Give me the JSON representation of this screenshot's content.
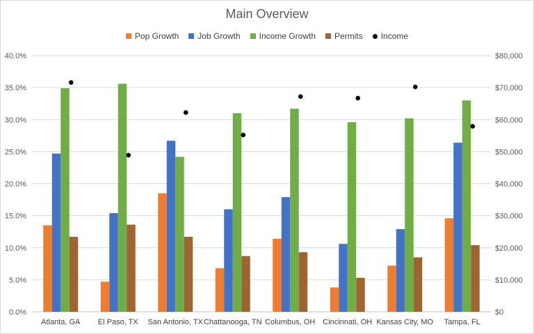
{
  "chart_data": {
    "type": "bar",
    "title": "Main Overview",
    "categories": [
      "Atlanta, GA",
      "El Paso, TX",
      "San Antonio, TX",
      "Chattanooga, TN",
      "Columbus, OH",
      "Cincinnati, OH",
      "Kansas City, MO",
      "Tampa, FL"
    ],
    "series": [
      {
        "name": "Pop Growth",
        "type": "bar",
        "axis": "left",
        "color": "#ED7D31",
        "values": [
          13.5,
          4.7,
          18.5,
          6.8,
          11.4,
          3.8,
          7.2,
          14.6
        ]
      },
      {
        "name": "Job Growth",
        "type": "bar",
        "axis": "left",
        "color": "#4472C4",
        "values": [
          24.7,
          15.4,
          26.7,
          16.0,
          17.9,
          10.6,
          12.9,
          26.4
        ]
      },
      {
        "name": "Income Growth",
        "type": "bar",
        "axis": "left",
        "color": "#70AD47",
        "values": [
          34.9,
          35.6,
          24.2,
          31.0,
          31.7,
          29.6,
          30.2,
          33.0
        ]
      },
      {
        "name": "Permits",
        "type": "bar",
        "axis": "left",
        "color": "#9E6434",
        "values": [
          11.7,
          13.6,
          11.7,
          8.7,
          9.3,
          5.3,
          8.5,
          10.4
        ]
      },
      {
        "name": "Income",
        "type": "scatter",
        "axis": "right",
        "color": "#000000",
        "values": [
          71600,
          48900,
          62200,
          55200,
          67200,
          66700,
          70200,
          57900
        ]
      }
    ],
    "left_axis": {
      "min": 0,
      "max": 40,
      "ticks": [
        "0.0%",
        "5.0%",
        "10.0%",
        "15.0%",
        "20.0%",
        "25.0%",
        "30.0%",
        "35.0%",
        "40.0%"
      ]
    },
    "right_axis": {
      "min": 0,
      "max": 80000,
      "ticks": [
        "$0",
        "$10,000",
        "$20,000",
        "$30,000",
        "$40,000",
        "$50,000",
        "$60,000",
        "$70,000",
        "$80,000"
      ]
    },
    "grid": true,
    "legend_position": "top"
  }
}
